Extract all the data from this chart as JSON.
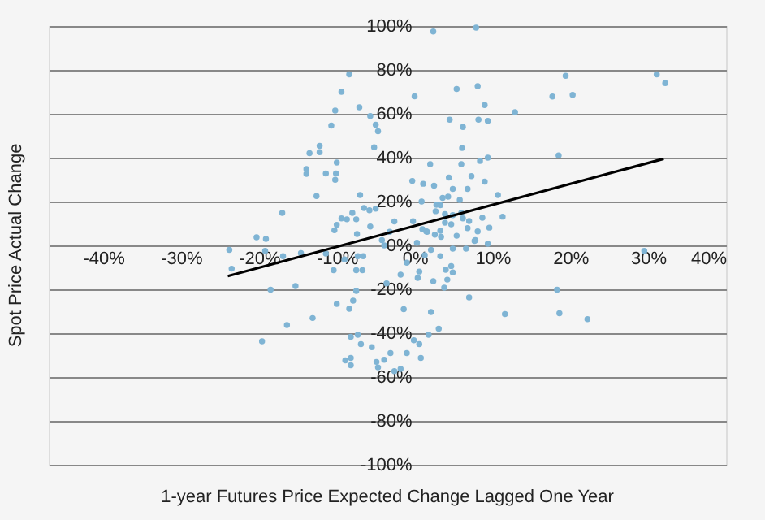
{
  "chart_data": {
    "type": "scatter",
    "xlabel": "1-year Futures Price Expected Change Lagged One Year",
    "ylabel": "Spot Price Actual Change",
    "xlim": [
      -47,
      40
    ],
    "ylim": [
      -100,
      100
    ],
    "xticks": [
      {
        "value": -40,
        "label": "-40%"
      },
      {
        "value": -30,
        "label": "-30%"
      },
      {
        "value": -20,
        "label": "-20%"
      },
      {
        "value": -10,
        "label": "-10%"
      },
      {
        "value": 0,
        "label": "0%"
      },
      {
        "value": 10,
        "label": "10%"
      },
      {
        "value": 20,
        "label": "20%"
      },
      {
        "value": 30,
        "label": "30%"
      },
      {
        "value": 40,
        "label": "40%"
      }
    ],
    "yticks": [
      {
        "value": -100,
        "label": "-100%"
      },
      {
        "value": -80,
        "label": "-80%"
      },
      {
        "value": -60,
        "label": "-60%"
      },
      {
        "value": -40,
        "label": "-40%"
      },
      {
        "value": -20,
        "label": "-20%"
      },
      {
        "value": 0,
        "label": "0%"
      },
      {
        "value": 20,
        "label": "20%"
      },
      {
        "value": 40,
        "label": "40%"
      },
      {
        "value": 60,
        "label": "60%"
      },
      {
        "value": 80,
        "label": "80%"
      },
      {
        "value": 100,
        "label": "100%"
      }
    ],
    "grid": "y",
    "series": [
      {
        "color": "#7fb4d4",
        "marker": "circle",
        "x": [
          2.4,
          -8.4,
          -9.4,
          0,
          -7.1,
          -10.2,
          -5.7,
          -10.7,
          -5,
          -4.7,
          -12.2,
          -5.2,
          -13.5,
          -12.2,
          -10,
          2,
          -13.9,
          -13.9,
          -11.4,
          -10.1,
          -10.2,
          -0.3,
          1.1,
          2.5,
          -12.6,
          -7,
          3.6,
          0.9,
          2.8,
          -17,
          -6.5,
          -5.8,
          -5,
          -8,
          -9.4,
          -8.7,
          -7.5,
          -10,
          -10.3,
          -2.6,
          -5.7,
          -0.2,
          1,
          1.6,
          2.6,
          3.3,
          -7.4,
          -3.2,
          -20.3,
          -19.1,
          -4.2,
          7.9,
          5.4,
          8.1,
          9,
          4.5,
          8.2,
          9.4,
          6.2,
          12.9,
          17.7,
          19.4,
          20.3,
          31.1,
          32.2,
          6.1,
          6,
          8.4,
          9.4,
          18.5,
          4.4,
          7.3,
          9,
          4.9,
          6.8,
          10.7,
          4.3,
          5.8,
          3.3,
          2.7,
          11.3,
          3.9,
          4.9,
          6,
          6.2,
          7,
          8.7,
          3.9,
          4.7,
          9.6,
          6.8,
          8.1,
          1.5,
          3.4,
          5.4,
          7.8,
          9.4,
          0.3,
          -23.8,
          -23.5,
          -19.2,
          -16.9,
          -14.6,
          -18.5,
          -15.3,
          -13.1,
          -16.4,
          -19.6,
          -10.4,
          -11.4,
          -9,
          -7.5,
          -6.7,
          -6.6,
          -7.3,
          -7.5,
          -7.9,
          -10,
          -8.4,
          -8.2,
          -7.3,
          -6.9,
          -5.5,
          -8.9,
          -8.2,
          -8.2,
          -4.9,
          -4.7,
          -3.9,
          -3.1,
          -2.6,
          -1.8,
          -1,
          -1.4,
          -3.6,
          -1.8,
          -1,
          -0.1,
          0.6,
          0.8,
          -3.9,
          0.4,
          1.3,
          0.6,
          2.1,
          2.4,
          3.3,
          3.8,
          4,
          4.2,
          4.7,
          4.9,
          4.9,
          6.6,
          7.7,
          7,
          2.1,
          3.1,
          1.8,
          11.6,
          18.3,
          18.6,
          22.2,
          29.5
        ],
        "values": [
          97.5,
          78,
          70,
          68,
          63,
          61.5,
          59,
          54.6,
          55,
          52,
          45.4,
          44.7,
          42,
          42.5,
          37.8,
          37,
          34.8,
          32.6,
          32.8,
          32.8,
          29.9,
          29.4,
          28.1,
          27.2,
          22.5,
          23,
          21.7,
          20,
          18.5,
          14.8,
          17,
          16,
          16.8,
          14.8,
          12.3,
          11.9,
          11.9,
          9.4,
          6.9,
          10.9,
          8.6,
          11,
          7.4,
          6.2,
          4.9,
          6.7,
          5.2,
          6.2,
          3.7,
          3,
          2.4,
          99.3,
          71.3,
          72.6,
          64,
          57.3,
          57.3,
          56.8,
          54,
          60.7,
          67.9,
          77.3,
          68.6,
          78,
          74,
          44.4,
          37,
          38.5,
          40,
          41,
          30.9,
          31.6,
          29.1,
          25.7,
          25.7,
          23,
          22.2,
          20.7,
          18.3,
          15.6,
          13.1,
          14.3,
          13.8,
          14.8,
          12.3,
          11.1,
          12.6,
          10.4,
          9.6,
          8.1,
          7.9,
          6.4,
          6.4,
          3.9,
          4.4,
          2.4,
          0.7,
          1.2,
          -2,
          -10.6,
          -2.5,
          -4.9,
          -3.5,
          -20.2,
          -18.5,
          -33.1,
          -36.3,
          -43.7,
          -11.3,
          -3.7,
          -6.4,
          -11.3,
          -11.3,
          -4.9,
          -4.9,
          -20.7,
          -25.2,
          -26.7,
          -28.9,
          -41.7,
          -40.7,
          -45,
          -46.4,
          -52.4,
          -51.3,
          -54.6,
          -53.1,
          -55.6,
          -52.1,
          -49.1,
          -57.3,
          -56.3,
          -49.1,
          -29.1,
          -17.3,
          -13.3,
          -7.9,
          -43.2,
          -45,
          -51.3,
          0,
          -14.8,
          -4.4,
          -11.9,
          -2,
          -16.3,
          -4.9,
          -19.3,
          -11.1,
          -15.6,
          -9.4,
          -12.3,
          -1.5,
          -1.5,
          2,
          -23.7,
          -30.4,
          -38,
          -40.7,
          -31.3,
          -20.2,
          -30.9,
          -33.6,
          -2.5
        ]
      },
      {
        "type": "line",
        "color": "#000000",
        "x": [
          -24,
          32
        ],
        "values": [
          -14,
          39.5
        ]
      }
    ]
  }
}
